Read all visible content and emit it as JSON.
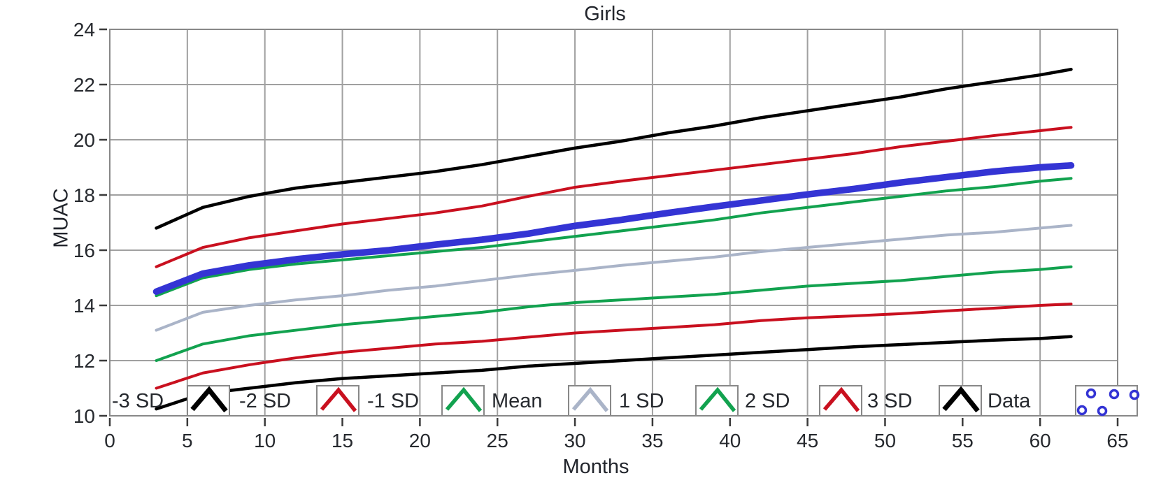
{
  "window": {
    "background": "#ffffff"
  },
  "chart_data": {
    "type": "line",
    "title": "Girls",
    "xlabel": "Months",
    "ylabel": "MUAC",
    "xlim": [
      0,
      65
    ],
    "ylim": [
      10,
      24
    ],
    "xticks": [
      0,
      5,
      10,
      15,
      20,
      25,
      30,
      35,
      40,
      45,
      50,
      55,
      60,
      65
    ],
    "yticks": [
      10,
      12,
      14,
      16,
      18,
      20,
      22,
      24
    ],
    "grid": true,
    "legend_position": "bottom-inside",
    "x": [
      3,
      6,
      9,
      12,
      15,
      18,
      21,
      24,
      27,
      30,
      33,
      36,
      39,
      42,
      45,
      48,
      51,
      54,
      57,
      60,
      62
    ],
    "series": [
      {
        "name": "-3 SD",
        "color": "#000000",
        "width": 4.5,
        "style": "line",
        "values": [
          10.25,
          10.8,
          11.0,
          11.2,
          11.35,
          11.45,
          11.55,
          11.65,
          11.8,
          11.9,
          12.0,
          12.1,
          12.2,
          12.3,
          12.4,
          12.5,
          12.58,
          12.66,
          12.74,
          12.8,
          12.87
        ]
      },
      {
        "name": "-2 SD",
        "color": "#c9101f",
        "width": 4,
        "style": "line",
        "values": [
          11.0,
          11.55,
          11.85,
          12.1,
          12.3,
          12.45,
          12.6,
          12.7,
          12.85,
          13.0,
          13.1,
          13.2,
          13.3,
          13.45,
          13.55,
          13.62,
          13.7,
          13.8,
          13.9,
          14.0,
          14.05
        ]
      },
      {
        "name": "-1 SD",
        "color": "#12a24f",
        "width": 4,
        "style": "line",
        "values": [
          12.0,
          12.6,
          12.9,
          13.1,
          13.3,
          13.45,
          13.6,
          13.75,
          13.95,
          14.1,
          14.2,
          14.3,
          14.4,
          14.55,
          14.7,
          14.8,
          14.9,
          15.05,
          15.2,
          15.3,
          15.4
        ]
      },
      {
        "name": "Mean",
        "color": "#aab4c8",
        "width": 4,
        "style": "line",
        "values": [
          13.1,
          13.75,
          14.0,
          14.2,
          14.35,
          14.55,
          14.7,
          14.9,
          15.1,
          15.27,
          15.45,
          15.6,
          15.75,
          15.95,
          16.1,
          16.25,
          16.4,
          16.55,
          16.65,
          16.8,
          16.9
        ]
      },
      {
        "name": "1 SD",
        "color": "#12a24f",
        "width": 4,
        "style": "line",
        "values": [
          14.35,
          15.0,
          15.3,
          15.5,
          15.65,
          15.8,
          15.95,
          16.1,
          16.3,
          16.5,
          16.7,
          16.9,
          17.1,
          17.35,
          17.55,
          17.75,
          17.95,
          18.15,
          18.3,
          18.5,
          18.6
        ]
      },
      {
        "name": "2 SD",
        "color": "#c9101f",
        "width": 4,
        "style": "line",
        "values": [
          15.4,
          16.1,
          16.45,
          16.7,
          16.95,
          17.15,
          17.35,
          17.6,
          17.95,
          18.28,
          18.5,
          18.7,
          18.9,
          19.1,
          19.3,
          19.5,
          19.75,
          19.95,
          20.15,
          20.33,
          20.45
        ]
      },
      {
        "name": "3 SD",
        "color": "#000000",
        "width": 4.5,
        "style": "line",
        "values": [
          16.8,
          17.55,
          17.95,
          18.25,
          18.45,
          18.65,
          18.85,
          19.1,
          19.4,
          19.7,
          19.95,
          20.25,
          20.5,
          20.8,
          21.05,
          21.3,
          21.55,
          21.85,
          22.1,
          22.35,
          22.55
        ]
      },
      {
        "name": "Data",
        "color": "#3434d4",
        "width": 9.5,
        "style": "scatter-band",
        "marker": "circle",
        "values": [
          14.5,
          15.15,
          15.45,
          15.67,
          15.85,
          16.0,
          16.2,
          16.38,
          16.6,
          16.88,
          17.1,
          17.35,
          17.58,
          17.8,
          18.02,
          18.22,
          18.45,
          18.65,
          18.85,
          19.0,
          19.07
        ]
      }
    ]
  },
  "legend": {
    "items": [
      {
        "label": "-3 SD",
        "color": "#000000",
        "sample": "line",
        "sample_stroke": 7
      },
      {
        "label": "-2 SD",
        "color": "#c9101f",
        "sample": "line",
        "sample_stroke": 5.5
      },
      {
        "label": "-1 SD",
        "color": "#12a24f",
        "sample": "line",
        "sample_stroke": 5.5
      },
      {
        "label": "Mean",
        "color": "#aab4c8",
        "sample": "line",
        "sample_stroke": 5.5
      },
      {
        "label": "1 SD",
        "color": "#12a24f",
        "sample": "line",
        "sample_stroke": 5.5
      },
      {
        "label": "2 SD",
        "color": "#c9101f",
        "sample": "line",
        "sample_stroke": 5.5
      },
      {
        "label": "3 SD",
        "color": "#000000",
        "sample": "line",
        "sample_stroke": 7
      },
      {
        "label": "Data",
        "color": "#3434d4",
        "sample": "scatter",
        "sample_stroke": 3.5
      }
    ]
  },
  "styles": {
    "gridline": "#a0a0a0",
    "plot_border": "#888888",
    "tick": "#3a3a3a",
    "text": "#26292e",
    "legend_box_fill": "#ffffff"
  }
}
